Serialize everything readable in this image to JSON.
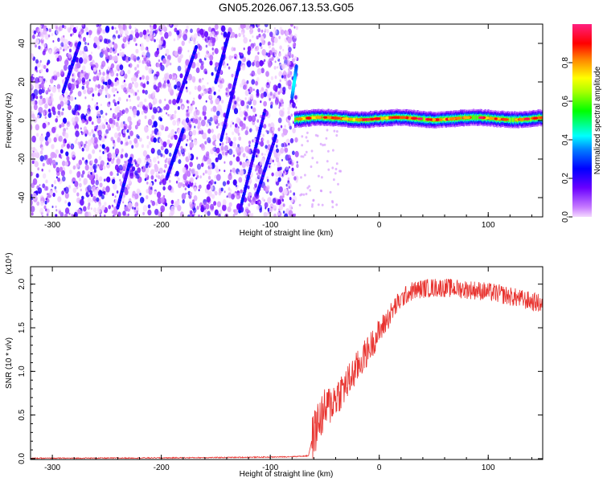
{
  "title": "GN05.2026.067.13.53.G05",
  "colorbar": {
    "label": "Normalized spectral amplitude",
    "ticks": [
      "0.0",
      "0.2",
      "0.4",
      "0.6",
      "0.8"
    ],
    "tick_values": [
      0.0,
      0.2,
      0.4,
      0.6,
      0.8
    ],
    "range": [
      0.0,
      1.0
    ],
    "colormap": "rainbow (magenta→blue→cyan→green→yellow→red→pink)"
  },
  "chart_data": [
    {
      "type": "heatmap",
      "xlabel": "Height of straight line (km)",
      "ylabel": "Frequency (Hz)",
      "xlim": [
        -320,
        150
      ],
      "ylim": [
        -50,
        50
      ],
      "xticks": [
        "-300",
        "-200",
        "-100",
        "0",
        "100"
      ],
      "xtick_values": [
        -300,
        -200,
        -100,
        0,
        100
      ],
      "yticks": [
        "-40",
        "-20",
        "0",
        "20",
        "40"
      ],
      "ytick_values": [
        -40,
        -20,
        0,
        20,
        40
      ],
      "description_regions": [
        {
          "region": "noise",
          "x_range": [
            -320,
            -75
          ],
          "freq_range": [
            -50,
            50
          ],
          "amplitude": "low (0.0-0.2), scattered blobs with diagonal streaks"
        },
        {
          "region": "doppler_line",
          "x_range": [
            -78,
            150
          ],
          "freq_center": 1,
          "freq_halfwidth": 3,
          "amplitude": "high (0.6-1.0) at center"
        }
      ],
      "streaks": [
        {
          "x0": -128,
          "f0": -47,
          "x1": -105,
          "f1": 5
        },
        {
          "x0": -112,
          "f0": -38,
          "x1": -95,
          "f1": -8
        },
        {
          "x0": -145,
          "f0": -10,
          "x1": -128,
          "f1": 30
        },
        {
          "x0": -185,
          "f0": 10,
          "x1": -168,
          "f1": 38
        },
        {
          "x0": -290,
          "f0": 15,
          "x1": -275,
          "f1": 40
        },
        {
          "x0": -195,
          "f0": -30,
          "x1": -180,
          "f1": -5
        },
        {
          "x0": -80,
          "f0": 12,
          "x1": -76,
          "f1": 28
        },
        {
          "x0": -240,
          "f0": -45,
          "x1": -228,
          "f1": -20
        },
        {
          "x0": -150,
          "f0": 20,
          "x1": -138,
          "f1": 45
        }
      ]
    },
    {
      "type": "line",
      "xlabel": "Height of straight line (km)",
      "ylabel": "SNR (10 * v/v)",
      "y_multiplier": "(x10⁴)",
      "xlim": [
        -320,
        150
      ],
      "ylim": [
        -0.01,
        2.2
      ],
      "xticks": [
        "-300",
        "-200",
        "-100",
        "0",
        "100"
      ],
      "xtick_values": [
        -300,
        -200,
        -100,
        0,
        100
      ],
      "yticks": [
        "0.0",
        "0.5",
        "1.0",
        "1.5",
        "2.0"
      ],
      "ytick_values": [
        0.0,
        0.5,
        1.0,
        1.5,
        2.0
      ],
      "color": "#e8322e",
      "series": [
        {
          "x": [
            -320,
            -250,
            -200,
            -150,
            -100,
            -80,
            -65,
            -62,
            -58,
            -55,
            -50,
            -45,
            -40,
            -35,
            -30,
            -25,
            -20,
            -15,
            -10,
            -5,
            0,
            5,
            10,
            15,
            20,
            25,
            30,
            40,
            50,
            60,
            70,
            80,
            90,
            100,
            110,
            120,
            130,
            140,
            150
          ],
          "values": [
            0.002,
            0.004,
            0.006,
            0.01,
            0.015,
            0.02,
            0.03,
            0.2,
            0.35,
            0.45,
            0.55,
            0.62,
            0.7,
            0.78,
            0.85,
            0.95,
            1.05,
            1.15,
            1.25,
            1.35,
            1.45,
            1.55,
            1.65,
            1.75,
            1.82,
            1.88,
            1.92,
            1.95,
            1.96,
            1.96,
            1.95,
            1.94,
            1.93,
            1.91,
            1.89,
            1.86,
            1.83,
            1.8,
            1.77
          ]
        }
      ]
    }
  ]
}
